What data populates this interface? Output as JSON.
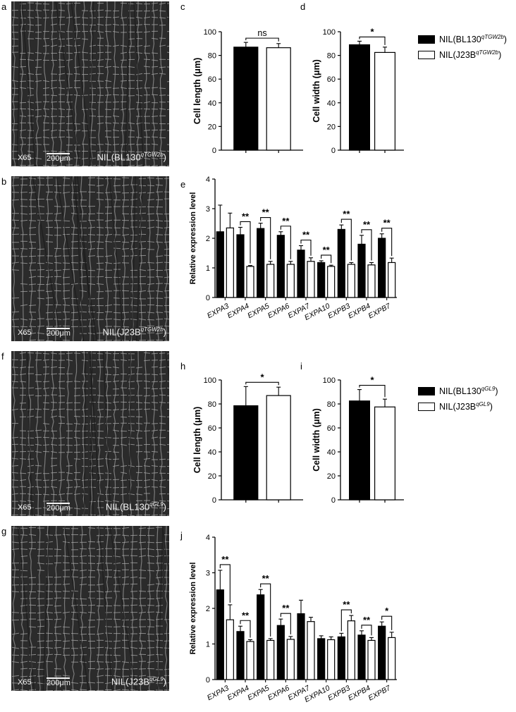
{
  "panel_letters": {
    "a": "a",
    "b": "b",
    "c": "c",
    "d": "d",
    "e": "e",
    "f": "f",
    "g": "g",
    "h": "h",
    "i": "i",
    "j": "j"
  },
  "micrographs": [
    {
      "id": "a",
      "magnification": "X65",
      "scale": "200μm",
      "label_base": "NIL(BL130",
      "label_sup": "qTGW2b",
      "label_end": ")"
    },
    {
      "id": "b",
      "magnification": "X65",
      "scale": "200μm",
      "label_base": "NIL(J23B",
      "label_sup": "qTGW2b",
      "label_end": ")"
    },
    {
      "id": "f",
      "magnification": "X65",
      "scale": "200μm",
      "label_base": "NIL(BL130",
      "label_sup": "qGL9",
      "label_end": ")"
    },
    {
      "id": "g",
      "magnification": "X65",
      "scale": "200μm",
      "label_base": "NIL(J23B",
      "label_sup": "qGL9",
      "label_end": ")"
    }
  ],
  "legend_top": [
    {
      "base": "NIL(BL130",
      "sup": "qTGW2b",
      "end": ")",
      "fill": "#000000"
    },
    {
      "base": "NIL(J23B",
      "sup": "qTGW2b",
      "end": ")",
      "fill": "#ffffff"
    }
  ],
  "legend_bottom": [
    {
      "base": "NIL(BL130",
      "sup": "qGL9",
      "end": ")",
      "fill": "#000000"
    },
    {
      "base": "NIL(J23B",
      "sup": "qGL9",
      "end": ")",
      "fill": "#ffffff"
    }
  ],
  "chart_data": [
    {
      "panel": "c",
      "type": "bar",
      "ylabel": "Cell length (μm)",
      "ylim": [
        0,
        100
      ],
      "yticks": [
        0,
        20,
        40,
        60,
        80,
        100
      ],
      "series": [
        {
          "values": [
            87
          ],
          "errors": [
            4
          ],
          "fill": "#000000"
        },
        {
          "values": [
            86.5
          ],
          "errors": [
            3.5
          ],
          "fill": "#ffffff"
        }
      ],
      "significance": [
        "ns"
      ]
    },
    {
      "panel": "d",
      "type": "bar",
      "ylabel": "Cell width (μm)",
      "ylim": [
        0,
        100
      ],
      "yticks": [
        0,
        20,
        40,
        60,
        80,
        100
      ],
      "series": [
        {
          "values": [
            89
          ],
          "errors": [
            3
          ],
          "fill": "#000000"
        },
        {
          "values": [
            82.5
          ],
          "errors": [
            4.5
          ],
          "fill": "#ffffff"
        }
      ],
      "significance": [
        "*"
      ]
    },
    {
      "panel": "e",
      "type": "bar",
      "ylabel": "Relative expression level",
      "ylim": [
        0,
        4
      ],
      "yticks": [
        0,
        1,
        2,
        3,
        4
      ],
      "categories": [
        "EXPA3",
        "EXPA4",
        "EXPA5",
        "EXPA6",
        "EXPA7",
        "EXPA10",
        "EXPB3",
        "EXPB4",
        "EXPB7"
      ],
      "series": [
        {
          "values": [
            2.22,
            2.12,
            2.33,
            2.1,
            1.6,
            1.18,
            2.3,
            1.8,
            2.0
          ],
          "errors": [
            0.9,
            0.25,
            0.18,
            0.12,
            0.15,
            0.06,
            0.15,
            0.3,
            0.15
          ],
          "fill": "#000000"
        },
        {
          "values": [
            2.35,
            1.05,
            1.12,
            1.12,
            1.22,
            1.05,
            1.12,
            1.1,
            1.18
          ],
          "errors": [
            0.5,
            0.03,
            0.1,
            0.1,
            0.12,
            0.04,
            0.06,
            0.08,
            0.15
          ],
          "fill": "#ffffff"
        }
      ],
      "significance": [
        "",
        "**",
        "**",
        "**",
        "**",
        "**",
        "**",
        "**",
        "**"
      ]
    },
    {
      "panel": "h",
      "type": "bar",
      "ylabel": "Cell length (μm)",
      "ylim": [
        0,
        100
      ],
      "yticks": [
        0,
        20,
        40,
        60,
        80,
        100
      ],
      "series": [
        {
          "values": [
            78.5
          ],
          "errors": [
            16
          ],
          "fill": "#000000"
        },
        {
          "values": [
            87
          ],
          "errors": [
            7
          ],
          "fill": "#ffffff"
        }
      ],
      "significance": [
        "*"
      ]
    },
    {
      "panel": "i",
      "type": "bar",
      "ylabel": "Cell width (μm)",
      "ylim": [
        0,
        100
      ],
      "yticks": [
        0,
        20,
        40,
        60,
        80,
        100
      ],
      "series": [
        {
          "values": [
            82.5
          ],
          "errors": [
            9.5
          ],
          "fill": "#000000"
        },
        {
          "values": [
            77.5
          ],
          "errors": [
            6.5
          ],
          "fill": "#ffffff"
        }
      ],
      "significance": [
        "*"
      ]
    },
    {
      "panel": "j",
      "type": "bar",
      "ylabel": "Relative expression level",
      "ylim": [
        0,
        4
      ],
      "yticks": [
        0,
        1,
        2,
        3,
        4
      ],
      "categories": [
        "EXPA3",
        "EXPA4",
        "EXPA5",
        "EXPA6",
        "EXPA7",
        "EXPA10",
        "EXPB3",
        "EXPB4",
        "EXPB7"
      ],
      "series": [
        {
          "values": [
            2.52,
            1.35,
            2.38,
            1.52,
            1.85,
            1.15,
            1.2,
            1.25,
            1.5
          ],
          "errors": [
            0.55,
            0.15,
            0.15,
            0.18,
            0.38,
            0.08,
            0.1,
            0.12,
            0.12
          ],
          "fill": "#000000"
        },
        {
          "values": [
            1.68,
            1.07,
            1.1,
            1.13,
            1.63,
            1.12,
            1.65,
            1.1,
            1.18
          ],
          "errors": [
            0.42,
            0.05,
            0.05,
            0.08,
            0.12,
            0.08,
            0.15,
            0.08,
            0.15
          ],
          "fill": "#ffffff"
        }
      ],
      "significance": [
        "**",
        "**",
        "**",
        "**",
        "",
        "",
        "**",
        "**",
        "*"
      ]
    }
  ]
}
